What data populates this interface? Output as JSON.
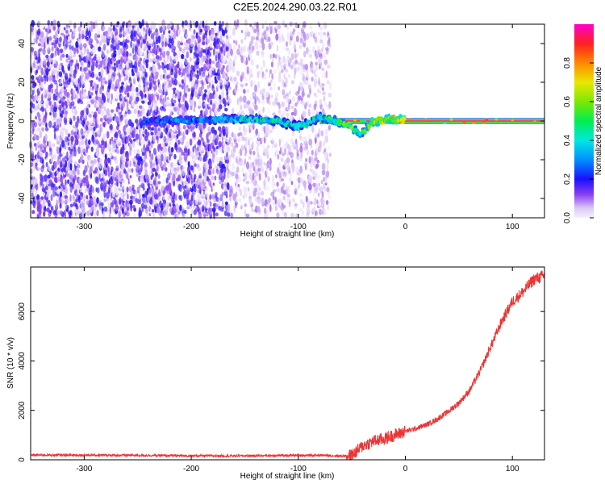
{
  "figure": {
    "title": "C2E5.2024.290.03.22.R01"
  },
  "chart_data": [
    {
      "type": "heatmap",
      "xlabel": "Height of straight line (km)",
      "ylabel": "Frequency (Hz)",
      "xlim": [
        -350,
        130
      ],
      "ylim": [
        -50,
        50
      ],
      "x_ticks": [
        -300,
        -200,
        -100,
        0,
        100
      ],
      "y_ticks": [
        -40,
        -20,
        0,
        20,
        40
      ],
      "colorbar": {
        "label": "Normalized spectral amplitude",
        "range": [
          0.0,
          1.0
        ],
        "ticks": [
          "0.0",
          "0.2",
          "0.4",
          "0.6",
          "0.8"
        ],
        "tick_values": [
          0.0,
          0.2,
          0.4,
          0.6,
          0.8
        ]
      },
      "noise_regions": [
        {
          "x_range": [
            -350,
            -165
          ],
          "density": "dense",
          "max_amplitude": 0.2
        },
        {
          "x_range": [
            -165,
            -72
          ],
          "density": "sparse",
          "max_amplitude": 0.1
        }
      ],
      "carrier_line": {
        "frequency": 0,
        "x_start": -80,
        "x_end": 130,
        "amplitude": 0.95
      },
      "trace": [
        {
          "x": -245,
          "f": 0,
          "amplitude": 0.25
        },
        {
          "x": -225,
          "f": 0,
          "amplitude": 0.3
        },
        {
          "x": -160,
          "f": 1,
          "amplitude": 0.35
        },
        {
          "x": -140,
          "f": 1,
          "amplitude": 0.5
        },
        {
          "x": -120,
          "f": 0,
          "amplitude": 0.45
        },
        {
          "x": -100,
          "f": -3,
          "amplitude": 0.4
        },
        {
          "x": -80,
          "f": 2,
          "amplitude": 0.45
        },
        {
          "x": -65,
          "f": 0,
          "amplitude": 0.55
        },
        {
          "x": -50,
          "f": -3,
          "amplitude": 0.6
        },
        {
          "x": -42,
          "f": -7,
          "amplitude": 0.45
        },
        {
          "x": -30,
          "f": 0,
          "amplitude": 0.7
        },
        {
          "x": -10,
          "f": 1,
          "amplitude": 0.75
        },
        {
          "x": 0,
          "f": 0,
          "amplitude": 0.8
        }
      ]
    },
    {
      "type": "line",
      "xlabel": "Height of straight line (km)",
      "ylabel": "SNR (10 * v/v)",
      "xlim": [
        -350,
        130
      ],
      "ylim": [
        0,
        7800
      ],
      "x_ticks": [
        -300,
        -200,
        -100,
        0,
        100
      ],
      "y_ticks": [
        0,
        2000,
        4000,
        6000
      ],
      "series": [
        {
          "color": "#ee3333",
          "x": [
            -350,
            -300,
            -250,
            -200,
            -150,
            -100,
            -75,
            -60,
            -50,
            -40,
            -30,
            -20,
            -10,
            0,
            10,
            20,
            30,
            40,
            50,
            60,
            70,
            80,
            90,
            100,
            110,
            120,
            130
          ],
          "y": [
            190,
            190,
            180,
            160,
            160,
            180,
            180,
            150,
            180,
            550,
            750,
            850,
            1000,
            1150,
            1270,
            1420,
            1650,
            1950,
            2300,
            2800,
            3600,
            4600,
            5600,
            6400,
            6800,
            7300,
            7450
          ]
        }
      ]
    }
  ]
}
